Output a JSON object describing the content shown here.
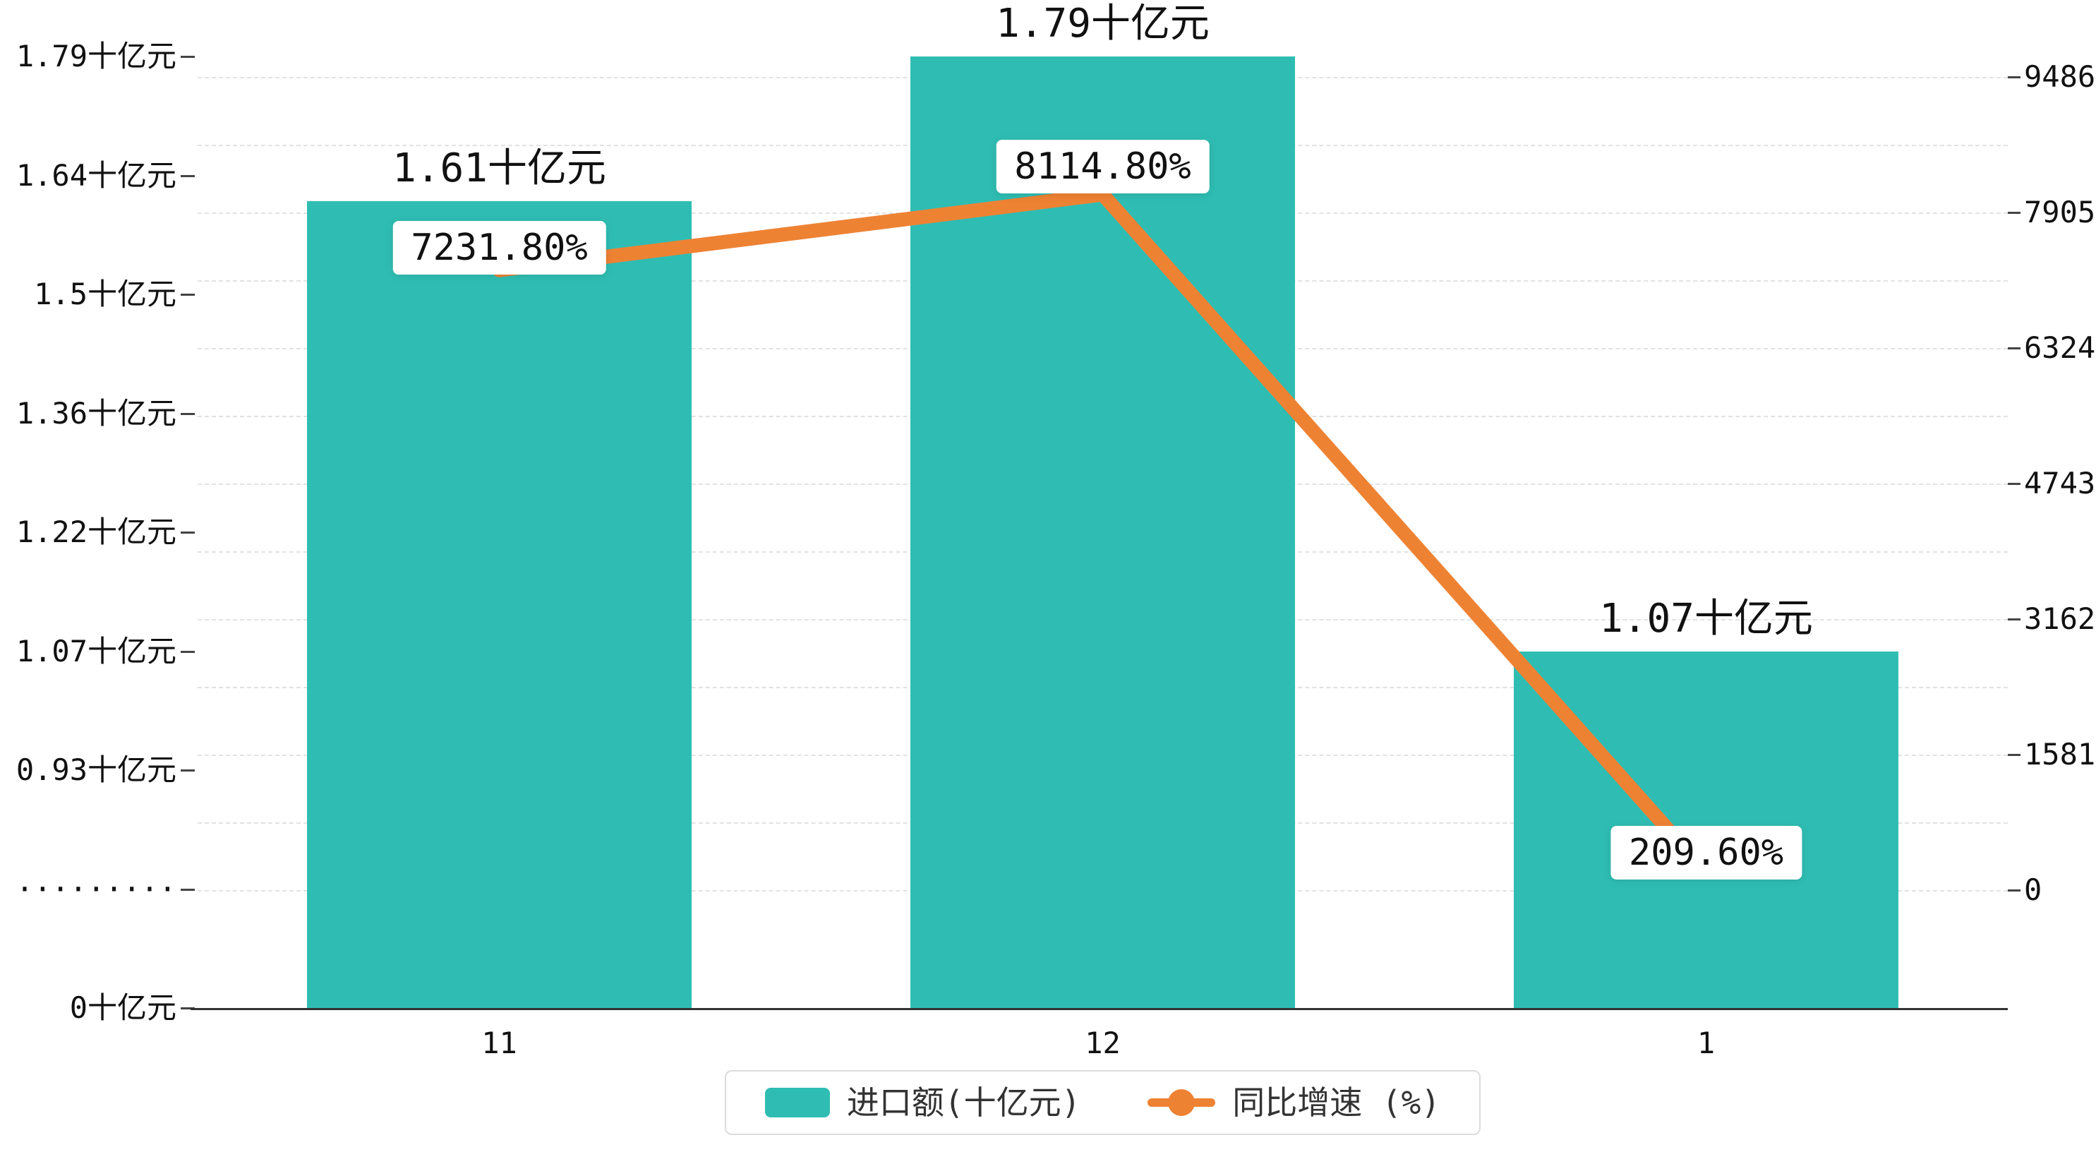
{
  "chart_data": {
    "type": "bar+line",
    "title": "",
    "categories": [
      "11",
      "12",
      "1"
    ],
    "series": [
      {
        "name": "进口额(十亿元)",
        "type": "bar",
        "axis": "left",
        "color": "#2fbdb3",
        "values": [
          1.61,
          1.79,
          1.07
        ],
        "labels": [
          "1.61十亿元",
          "1.79十亿元",
          "1.07十亿元"
        ]
      },
      {
        "name": "同比增速 (%)",
        "type": "line",
        "axis": "right",
        "color": "#ee8233",
        "values": [
          7231.8,
          8114.8,
          209.6
        ],
        "labels": [
          "7231.80%",
          "8114.80%",
          "209.60%"
        ]
      }
    ],
    "left_axis": {
      "labels": [
        "1.79十亿元",
        "1.64十亿元",
        "1.5十亿元",
        "1.36十亿元",
        "1.22十亿元",
        "1.07十亿元",
        "0.93十亿元",
        "·········",
        "0十亿元"
      ],
      "values": [
        1.79,
        1.64,
        1.5,
        1.36,
        1.22,
        1.07,
        0.93,
        null,
        0
      ],
      "has_break": true,
      "range": [
        0,
        1.79
      ]
    },
    "right_axis": {
      "labels": [
        "9486",
        "7905",
        "6324",
        "4743",
        "3162",
        "1581",
        "0"
      ],
      "values": [
        9486,
        7905,
        6324,
        4743,
        3162,
        1581,
        0
      ],
      "range": [
        0,
        9486
      ]
    },
    "grid": "dashed horizontal",
    "legend_position": "bottom"
  },
  "legend": {
    "items": [
      {
        "label": "进口额(十亿元)",
        "marker": "bar-swatch",
        "color": "#2fbdb3"
      },
      {
        "label": "同比增速 (%)",
        "marker": "line-dot",
        "color": "#ee8233"
      }
    ]
  }
}
